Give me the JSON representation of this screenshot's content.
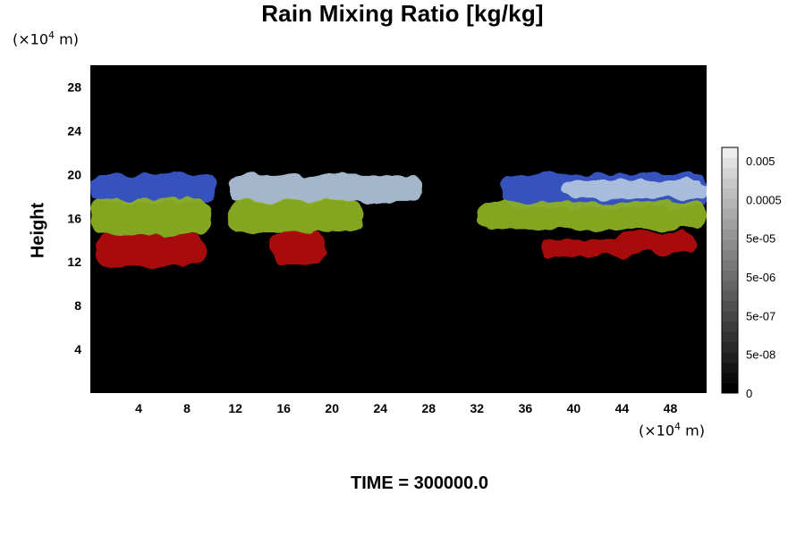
{
  "title": "Rain Mixing Ratio [kg/kg]",
  "time_label": "TIME = 300000.0",
  "x_unit": {
    "prefix": "(×10",
    "exp": "4",
    "suffix": " m)"
  },
  "y_unit": {
    "prefix": "(×10",
    "exp": "4",
    "suffix": " m)"
  },
  "colorbar": {
    "labels": [
      "0.005",
      "0.0005",
      "5e-05",
      "5e-06",
      "5e-07",
      "5e-08",
      "0"
    ],
    "colors": [
      "#000000",
      "#0a0a0a",
      "#141414",
      "#1e1e1e",
      "#282828",
      "#323232",
      "#3c3c3c",
      "#464646",
      "#505050",
      "#5a5a5a",
      "#646464",
      "#6e6e6e",
      "#787878",
      "#828282",
      "#8c8c8c",
      "#969696",
      "#a0a0a0",
      "#aaaaaa",
      "#b4b4b4",
      "#bebebe",
      "#c8c8c8",
      "#d4d4d4",
      "#e0e0e0",
      "#ececec"
    ]
  },
  "chart_data": {
    "type": "heatmap",
    "title": "Rain Mixing Ratio [kg/kg]",
    "xlabel": "",
    "ylabel": "Height",
    "x_unit": "(×10^4 m)",
    "y_unit": "(×10^4 m)",
    "xlim": [
      0,
      51
    ],
    "ylim": [
      0,
      30
    ],
    "x_ticks": [
      4,
      8,
      12,
      16,
      20,
      24,
      28,
      32,
      36,
      40,
      44,
      48
    ],
    "y_ticks": [
      4,
      8,
      12,
      16,
      20,
      24,
      28
    ],
    "colorbar_ticks": [
      "0",
      "5e-08",
      "5e-07",
      "5e-06",
      "5e-05",
      "0.0005",
      "0.005"
    ],
    "background_color": "#000000",
    "layers": [
      {
        "color": "#3a5ad0",
        "regions": [
          {
            "x": [
              0.0,
              10.5
            ],
            "y": [
              17.5,
              20.0
            ]
          },
          {
            "x": [
              34.0,
              51.0
            ],
            "y": [
              17.0,
              20.0
            ]
          }
        ]
      },
      {
        "color": "#b2c6de",
        "regions": [
          {
            "x": [
              11.5,
              27.5
            ],
            "y": [
              17.5,
              20.0
            ]
          },
          {
            "x": [
              39.0,
              51.0
            ],
            "y": [
              17.8,
              19.5
            ]
          }
        ]
      },
      {
        "color": "#8fb320",
        "regions": [
          {
            "x": [
              0.0,
              10.0
            ],
            "y": [
              14.5,
              17.8
            ]
          },
          {
            "x": [
              11.5,
              22.5
            ],
            "y": [
              14.7,
              17.6
            ]
          },
          {
            "x": [
              32.0,
              51.0
            ],
            "y": [
              15.0,
              17.5
            ]
          }
        ]
      },
      {
        "color": "#b61010",
        "regions": [
          {
            "x": [
              0.5,
              9.5
            ],
            "y": [
              11.5,
              14.5
            ]
          },
          {
            "x": [
              15.0,
              19.5
            ],
            "y": [
              11.8,
              14.8
            ]
          },
          {
            "x": [
              37.0,
              45.0
            ],
            "y": [
              12.5,
              14.0
            ]
          },
          {
            "x": [
              43.5,
              50.0
            ],
            "y": [
              12.8,
              14.8
            ]
          }
        ]
      }
    ],
    "grid": false
  }
}
